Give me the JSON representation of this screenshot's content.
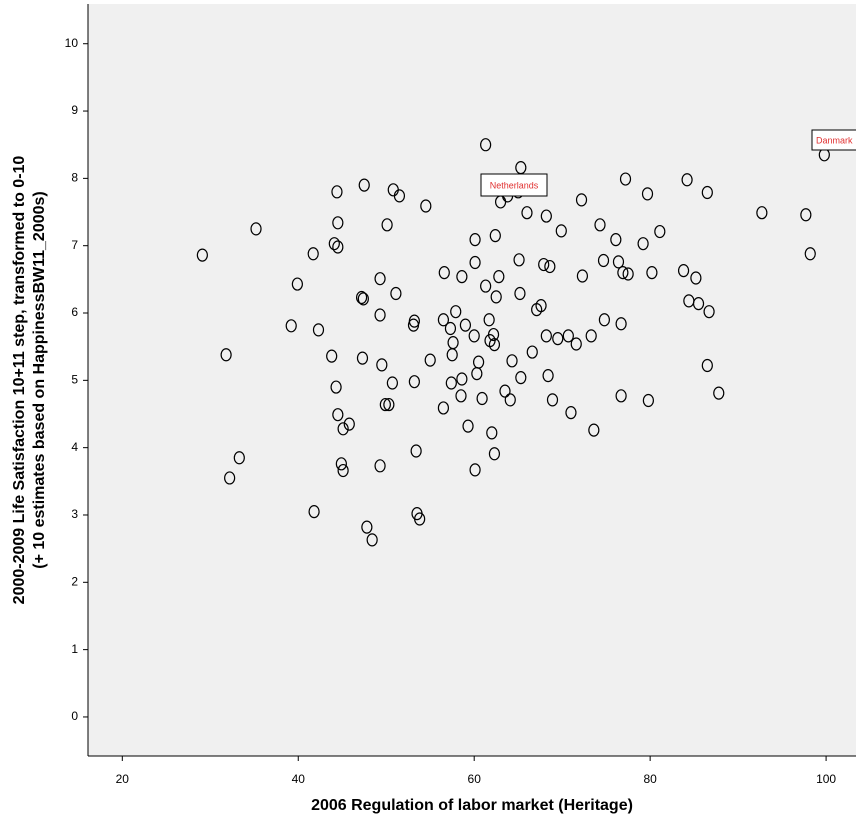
{
  "chart_data": {
    "type": "scatter",
    "xlabel": "2006 Regulation of labor market (Heritage)",
    "ylabel": [
      "2000-2009 Life Satisfaction 10+11 step, transformed to 0-10",
      "(+ 10 estimates based on HappinessBW11_2000s)"
    ],
    "xlim": [
      16.1,
      103.4
    ],
    "ylim": [
      -0.58,
      10.59
    ],
    "xticks": [
      20,
      40,
      60,
      80,
      100
    ],
    "yticks": [
      0,
      1,
      2,
      3,
      4,
      5,
      6,
      7,
      8,
      9,
      10
    ],
    "color": "#000000",
    "background": "#f0f0f0",
    "annotations": [
      "Netherlands",
      "Danmark"
    ],
    "x": [
      29.1,
      31.8,
      32.2,
      33.3,
      35.2,
      39.2,
      39.9,
      41.7,
      41.8,
      42.3,
      43.8,
      44.1,
      44.4,
      44.5,
      44.5,
      44.3,
      44.5,
      44.9,
      45.1,
      45.1,
      45.8,
      47.2,
      47.4,
      47.3,
      47.5,
      47.8,
      48.4,
      49.3,
      49.3,
      49.5,
      49.3,
      49.9,
      50.3,
      50.1,
      50.7,
      50.8,
      51.1,
      51.5,
      53.1,
      53.2,
      53.2,
      53.4,
      53.5,
      53.8,
      54.5,
      55.0,
      56.5,
      56.5,
      56.6,
      57.3,
      57.4,
      57.5,
      57.6,
      57.9,
      58.5,
      58.6,
      58.6,
      59.0,
      59.3,
      60.0,
      60.1,
      60.1,
      60.1,
      60.3,
      60.5,
      60.9,
      61.3,
      61.3,
      61.7,
      61.8,
      62.0,
      62.2,
      62.3,
      62.3,
      62.4,
      62.5,
      62.8,
      63.0,
      63.5,
      63.8,
      64.1,
      64.3,
      65.0,
      65.2,
      65.1,
      65.3,
      65.3,
      66.0,
      66.6,
      67.1,
      67.6,
      67.9,
      68.2,
      68.2,
      68.4,
      68.6,
      68.9,
      69.5,
      69.9,
      70.7,
      71.0,
      71.6,
      72.2,
      72.3,
      73.3,
      73.6,
      74.3,
      74.8,
      74.7,
      76.1,
      76.4,
      76.7,
      76.7,
      76.9,
      77.2,
      77.5,
      79.2,
      79.7,
      79.8,
      80.2,
      81.1,
      83.8,
      84.2,
      84.4,
      85.2,
      85.5,
      86.5,
      86.5,
      86.7,
      87.8,
      92.7,
      97.7,
      98.2,
      99.8
    ],
    "y": [
      6.86,
      5.38,
      3.55,
      3.85,
      7.25,
      5.81,
      6.43,
      6.88,
      3.05,
      5.75,
      5.36,
      7.03,
      7.8,
      7.34,
      6.98,
      4.9,
      4.49,
      3.76,
      3.66,
      4.28,
      4.35,
      6.23,
      6.21,
      5.33,
      7.9,
      2.82,
      2.63,
      6.51,
      5.97,
      5.23,
      3.73,
      4.64,
      4.64,
      7.31,
      4.96,
      7.83,
      6.29,
      7.74,
      5.82,
      5.88,
      4.98,
      3.95,
      3.02,
      2.94,
      7.59,
      5.3,
      4.59,
      5.9,
      6.6,
      5.77,
      4.96,
      5.38,
      5.56,
      6.02,
      4.77,
      6.54,
      5.02,
      5.82,
      4.32,
      5.66,
      7.09,
      6.75,
      3.67,
      5.1,
      5.27,
      4.73,
      8.5,
      6.4,
      5.9,
      5.59,
      4.22,
      5.68,
      5.53,
      3.91,
      7.15,
      6.24,
      6.54,
      7.65,
      4.84,
      7.74,
      4.71,
      5.29,
      7.8,
      6.29,
      6.79,
      5.04,
      8.16,
      7.49,
      5.42,
      6.05,
      6.11,
      6.72,
      5.66,
      7.44,
      5.07,
      6.69,
      4.71,
      5.62,
      7.22,
      5.66,
      4.52,
      5.54,
      7.68,
      6.55,
      5.66,
      4.26,
      7.31,
      5.9,
      6.78,
      7.09,
      6.76,
      4.77,
      5.84,
      6.6,
      7.99,
      6.58,
      7.03,
      7.77,
      4.7,
      6.6,
      7.21,
      6.63,
      7.98,
      6.18,
      6.52,
      6.14,
      5.22,
      7.79,
      6.02,
      4.81,
      7.49,
      7.46,
      6.88,
      8.35
    ]
  }
}
